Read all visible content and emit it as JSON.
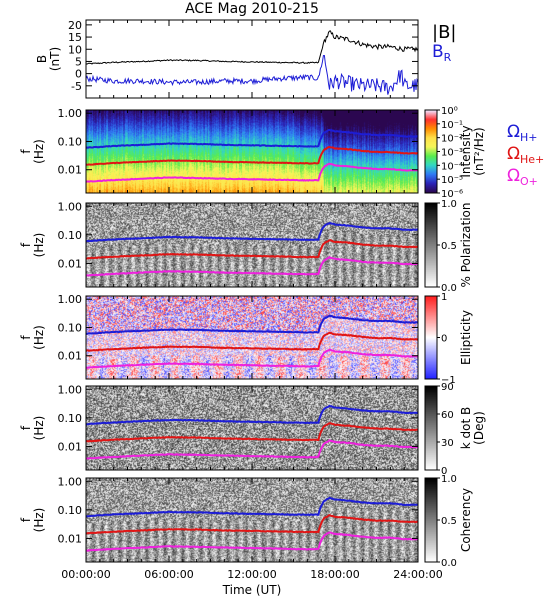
{
  "chart_data": [
    {
      "type": "line",
      "title": "ACE Mag 2010-215",
      "ylabel": "B",
      "yunit": "(nT)",
      "ylim": [
        -10,
        22
      ],
      "yticks": [
        "-5",
        "0",
        "5",
        "10",
        "15",
        "20"
      ],
      "xlim_hours": [
        0,
        24
      ],
      "series": [
        {
          "name": "|B|",
          "color": "#000000",
          "x": [
            0,
            2,
            4,
            6,
            8,
            10,
            12,
            14,
            16,
            16.8,
            17.2,
            17.6,
            18,
            19,
            20,
            21,
            22,
            23,
            24
          ],
          "y": [
            4,
            4.6,
            5,
            5.5,
            5.4,
            5,
            4.8,
            4.6,
            4.4,
            4.5,
            13,
            17,
            15,
            14,
            12,
            11,
            11,
            10,
            10
          ]
        },
        {
          "name": "B",
          "sub": "R",
          "color": "#1d1dd6",
          "x": [
            0,
            1,
            2,
            4,
            6,
            8,
            10,
            12,
            14,
            16,
            16.8,
            17.2,
            17.6,
            18,
            19,
            20,
            21,
            22,
            22.8,
            23,
            24
          ],
          "y": [
            -2,
            -2.5,
            -3,
            -3,
            -3.5,
            -3.5,
            -3,
            -3,
            -2,
            -1.5,
            -2,
            8,
            -5,
            -3,
            -4,
            -5,
            -5,
            -6,
            0,
            -5,
            -5
          ]
        }
      ]
    },
    {
      "type": "heatmap",
      "name": "intensity",
      "ylabel": "f",
      "yunit": "(Hz)",
      "yticks": [
        "1.00",
        "0.10",
        "0.01"
      ],
      "colorbar": {
        "label": "Intensity",
        "unit": "(nT²/Hz)",
        "ticks": [
          "10⁰",
          "10⁻¹",
          "10⁻²",
          "10⁻³",
          "10⁻⁴",
          "10⁻⁵",
          "10⁻⁶"
        ],
        "colors": [
          "#f2e4ff",
          "#ff3030",
          "#ff8c00",
          "#ffe14a",
          "#f6f65a",
          "#59ec4d",
          "#33d8c4",
          "#2f7bf5",
          "#2b24b8",
          "#2b0750"
        ]
      }
    },
    {
      "type": "heatmap",
      "name": "polarization",
      "ylabel": "f",
      "yunit": "(Hz)",
      "yticks": [
        "1.00",
        "0.10",
        "0.01"
      ],
      "colorbar": {
        "label": "% Polarization",
        "ticks": [
          "1.0",
          "0.5",
          "0.0"
        ],
        "colors": [
          "#000000",
          "#ffffff"
        ]
      }
    },
    {
      "type": "heatmap",
      "name": "ellipticity",
      "ylabel": "f",
      "yunit": "(Hz)",
      "yticks": [
        "1.00",
        "0.10",
        "0.01"
      ],
      "colorbar": {
        "label": "Ellipticity",
        "ticks": [
          "1",
          "0",
          "−1"
        ],
        "colors": [
          "#ff1f1f",
          "#ffffff",
          "#2424ff"
        ]
      }
    },
    {
      "type": "heatmap",
      "name": "k-dot-b",
      "ylabel": "f",
      "yunit": "(Hz)",
      "yticks": [
        "1.00",
        "0.10",
        "0.01"
      ],
      "colorbar": {
        "label": "k dot B",
        "unit": "(Deg)",
        "ticks": [
          "90",
          "60",
          "30",
          "0"
        ],
        "colors": [
          "#000000",
          "#ffffff"
        ]
      }
    },
    {
      "type": "heatmap",
      "name": "coherency",
      "ylabel": "f",
      "yunit": "(Hz)",
      "yticks": [
        "1.00",
        "0.10",
        "0.01"
      ],
      "colorbar": {
        "label": "Coherency",
        "ticks": [
          "1.0",
          "0.5",
          "0.0"
        ],
        "colors": [
          "#000000",
          "#ffffff"
        ]
      }
    }
  ],
  "gyro_lines": [
    {
      "name": "Ω",
      "sub": "H+",
      "color": "#1d1dd6",
      "x": [
        0,
        2,
        4,
        6,
        8,
        10,
        12,
        14,
        16,
        16.8,
        17.2,
        17.6,
        18,
        19,
        20,
        21,
        22,
        23,
        24
      ],
      "y": [
        0.06,
        0.069,
        0.076,
        0.084,
        0.082,
        0.076,
        0.073,
        0.07,
        0.067,
        0.068,
        0.2,
        0.26,
        0.23,
        0.21,
        0.18,
        0.17,
        0.17,
        0.15,
        0.15
      ]
    },
    {
      "name": "Ω",
      "sub": "He+",
      "color": "#e01515",
      "x": [
        0,
        2,
        4,
        6,
        8,
        10,
        12,
        14,
        16,
        16.8,
        17.2,
        17.6,
        18,
        19,
        20,
        21,
        22,
        23,
        24
      ],
      "y": [
        0.015,
        0.0172,
        0.019,
        0.021,
        0.0205,
        0.019,
        0.0183,
        0.0175,
        0.0168,
        0.017,
        0.05,
        0.065,
        0.057,
        0.053,
        0.046,
        0.042,
        0.042,
        0.038,
        0.038
      ]
    },
    {
      "name": "Ω",
      "sub": "O+",
      "color": "#ee22dd",
      "x": [
        0,
        2,
        4,
        6,
        8,
        10,
        12,
        14,
        16,
        16.8,
        17.2,
        17.6,
        18,
        19,
        20,
        21,
        22,
        23,
        24
      ],
      "y": [
        0.0038,
        0.0043,
        0.0048,
        0.0053,
        0.0051,
        0.0048,
        0.0046,
        0.0044,
        0.0042,
        0.0043,
        0.0125,
        0.0163,
        0.0143,
        0.0132,
        0.0114,
        0.0106,
        0.0106,
        0.0095,
        0.0095
      ]
    }
  ],
  "x_axis": {
    "ticks": [
      "00:00:00",
      "06:00:00",
      "12:00:00",
      "18:00:00",
      "24:00:00"
    ],
    "label": "Time (UT)"
  }
}
